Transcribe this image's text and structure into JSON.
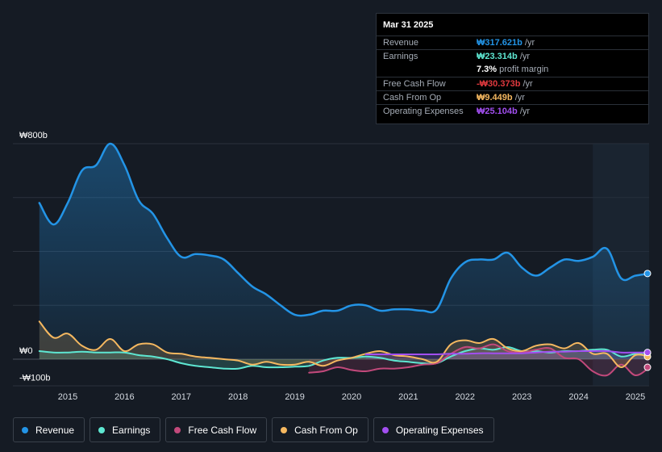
{
  "tooltip": {
    "date": "Mar 31 2025",
    "rows": [
      {
        "label": "Revenue",
        "value": "₩317.621b",
        "unit": "/yr",
        "color": "#2394e6"
      },
      {
        "label": "Earnings",
        "value": "₩23.314b",
        "unit": "/yr",
        "color": "#5ee7d2"
      },
      {
        "label": "",
        "value": "7.3%",
        "unit": "profit margin",
        "color": "#ffffff"
      },
      {
        "label": "Free Cash Flow",
        "value": "-₩30.373b",
        "unit": "/yr",
        "color": "#e0393e"
      },
      {
        "label": "Cash From Op",
        "value": "₩9.449b",
        "unit": "/yr",
        "color": "#f5b860"
      },
      {
        "label": "Operating Expenses",
        "value": "₩25.104b",
        "unit": "/yr",
        "color": "#a24ff0"
      }
    ]
  },
  "legend": [
    {
      "label": "Revenue",
      "color": "#2394e6"
    },
    {
      "label": "Earnings",
      "color": "#5ee7d2"
    },
    {
      "label": "Free Cash Flow",
      "color": "#c2497b"
    },
    {
      "label": "Cash From Op",
      "color": "#f5b860"
    },
    {
      "label": "Operating Expenses",
      "color": "#a24ff0"
    }
  ],
  "chart_data": {
    "type": "area",
    "title": "",
    "xlabel": "",
    "ylabel": "",
    "ylim": [
      -100,
      800
    ],
    "y_tick_labels": [
      "₩800b",
      "₩0",
      "-₩100b"
    ],
    "y_ticks": [
      800,
      0,
      -100
    ],
    "xlim": [
      2014.4,
      2025.3
    ],
    "x_ticks": [
      2015,
      2016,
      2017,
      2018,
      2019,
      2020,
      2021,
      2022,
      2023,
      2024,
      2025
    ],
    "x_tick_labels": [
      "2015",
      "2016",
      "2017",
      "2018",
      "2019",
      "2020",
      "2021",
      "2022",
      "2023",
      "2024",
      "2025"
    ],
    "forecast_start": 2024.25,
    "series": [
      {
        "name": "Revenue",
        "color": "#2394e6",
        "x": [
          2014.5,
          2014.75,
          2015.0,
          2015.25,
          2015.5,
          2015.75,
          2016.0,
          2016.25,
          2016.5,
          2016.75,
          2017.0,
          2017.25,
          2017.5,
          2017.75,
          2018.0,
          2018.25,
          2018.5,
          2018.75,
          2019.0,
          2019.25,
          2019.5,
          2019.75,
          2020.0,
          2020.25,
          2020.5,
          2020.75,
          2021.0,
          2021.25,
          2021.5,
          2021.75,
          2022.0,
          2022.25,
          2022.5,
          2022.75,
          2023.0,
          2023.25,
          2023.5,
          2023.75,
          2024.0,
          2024.25,
          2024.5,
          2024.75,
          2025.0,
          2025.25
        ],
        "values": [
          580,
          500,
          580,
          700,
          720,
          800,
          720,
          590,
          540,
          450,
          380,
          390,
          385,
          370,
          320,
          270,
          240,
          200,
          165,
          165,
          180,
          180,
          200,
          200,
          180,
          185,
          185,
          180,
          185,
          300,
          360,
          370,
          370,
          395,
          340,
          310,
          340,
          370,
          365,
          380,
          410,
          300,
          310,
          318
        ]
      },
      {
        "name": "Earnings",
        "color": "#5ee7d2",
        "x": [
          2014.5,
          2014.75,
          2015.0,
          2015.25,
          2015.5,
          2015.75,
          2016.0,
          2016.25,
          2016.5,
          2016.75,
          2017.0,
          2017.25,
          2017.5,
          2017.75,
          2018.0,
          2018.25,
          2018.5,
          2018.75,
          2019.0,
          2019.25,
          2019.5,
          2019.75,
          2020.0,
          2020.25,
          2020.5,
          2020.75,
          2021.0,
          2021.25,
          2021.5,
          2021.75,
          2022.0,
          2022.25,
          2022.5,
          2022.75,
          2023.0,
          2023.25,
          2023.5,
          2023.75,
          2024.0,
          2024.25,
          2024.5,
          2024.75,
          2025.0,
          2025.25
        ],
        "values": [
          30,
          25,
          25,
          28,
          25,
          25,
          25,
          15,
          10,
          0,
          -15,
          -25,
          -30,
          -35,
          -35,
          -25,
          -30,
          -30,
          -28,
          -25,
          -5,
          5,
          5,
          10,
          5,
          -5,
          -10,
          -15,
          -15,
          10,
          30,
          40,
          35,
          45,
          30,
          30,
          25,
          30,
          30,
          35,
          35,
          10,
          20,
          23
        ]
      },
      {
        "name": "Free Cash Flow",
        "color": "#c2497b",
        "x": [
          2019.25,
          2019.5,
          2019.75,
          2020.0,
          2020.25,
          2020.5,
          2020.75,
          2021.0,
          2021.25,
          2021.5,
          2021.75,
          2022.0,
          2022.25,
          2022.5,
          2022.75,
          2023.0,
          2023.25,
          2023.5,
          2023.75,
          2024.0,
          2024.25,
          2024.5,
          2024.75,
          2025.0,
          2025.25
        ],
        "values": [
          -50,
          -45,
          -30,
          -40,
          -45,
          -35,
          -35,
          -30,
          -20,
          -15,
          20,
          45,
          40,
          55,
          30,
          25,
          35,
          40,
          5,
          0,
          -45,
          -60,
          -20,
          -60,
          -30
        ]
      },
      {
        "name": "Cash From Op",
        "color": "#f5b860",
        "x": [
          2014.5,
          2014.75,
          2015.0,
          2015.25,
          2015.5,
          2015.75,
          2016.0,
          2016.25,
          2016.5,
          2016.75,
          2017.0,
          2017.25,
          2017.5,
          2017.75,
          2018.0,
          2018.25,
          2018.5,
          2018.75,
          2019.0,
          2019.25,
          2019.5,
          2019.75,
          2020.0,
          2020.25,
          2020.5,
          2020.75,
          2021.0,
          2021.25,
          2021.5,
          2021.75,
          2022.0,
          2022.25,
          2022.5,
          2022.75,
          2023.0,
          2023.25,
          2023.5,
          2023.75,
          2024.0,
          2024.25,
          2024.5,
          2024.75,
          2025.0,
          2025.25
        ],
        "values": [
          140,
          80,
          95,
          50,
          35,
          75,
          30,
          55,
          55,
          25,
          20,
          10,
          5,
          0,
          -5,
          -20,
          -10,
          -20,
          -20,
          -10,
          -25,
          -5,
          5,
          20,
          30,
          15,
          10,
          0,
          -10,
          55,
          70,
          60,
          75,
          40,
          30,
          50,
          55,
          40,
          60,
          20,
          20,
          -30,
          15,
          9
        ]
      },
      {
        "name": "Operating Expenses",
        "color": "#a24ff0",
        "x": [
          2020.25,
          2020.5,
          2020.75,
          2021.0,
          2021.25,
          2021.5,
          2021.75,
          2022.0,
          2022.25,
          2022.5,
          2022.75,
          2023.0,
          2023.25,
          2023.5,
          2023.75,
          2024.0,
          2024.25,
          2024.5,
          2024.75,
          2025.0,
          2025.25
        ],
        "values": [
          18,
          18,
          18,
          18,
          18,
          18,
          20,
          20,
          22,
          22,
          22,
          22,
          25,
          28,
          28,
          30,
          30,
          30,
          25,
          25,
          25
        ]
      }
    ]
  }
}
